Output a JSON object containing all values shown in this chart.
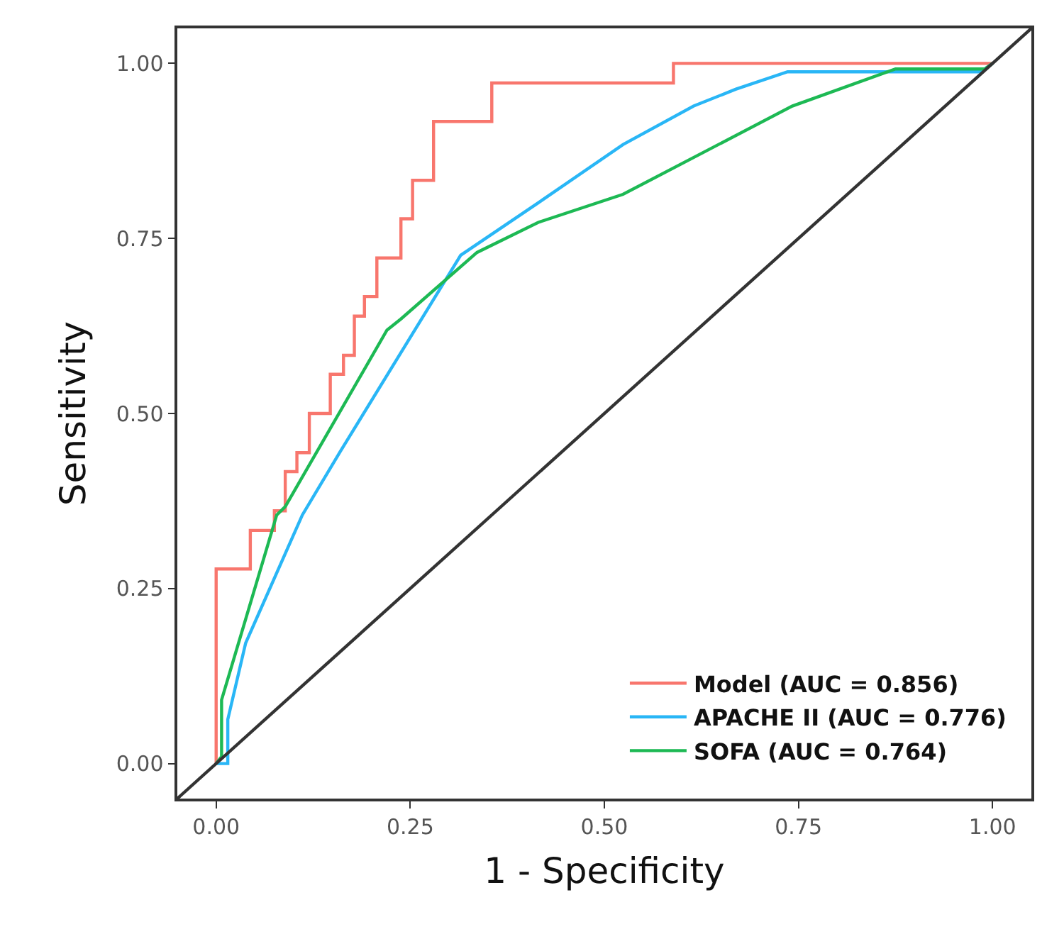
{
  "chart_data": {
    "type": "line",
    "xlabel": "1 - Specificity",
    "ylabel": "Sensitivity",
    "xlim": [
      -0.05,
      1.05
    ],
    "ylim": [
      -0.05,
      1.05
    ],
    "xticks": [
      {
        "value": 0,
        "label": "0.00"
      },
      {
        "value": 0.25,
        "label": "0.25"
      },
      {
        "value": 0.5,
        "label": "0.50"
      },
      {
        "value": 0.75,
        "label": "0.75"
      },
      {
        "value": 1,
        "label": "1.00"
      }
    ],
    "yticks": [
      {
        "value": 0,
        "label": "0.00"
      },
      {
        "value": 0.25,
        "label": "0.25"
      },
      {
        "value": 0.5,
        "label": "0.50"
      },
      {
        "value": 0.75,
        "label": "0.75"
      },
      {
        "value": 1,
        "label": "1.00"
      }
    ],
    "grid": false,
    "legend": "bottom right",
    "marker": "none",
    "line_style": "solid",
    "series": [
      {
        "type": "step",
        "name": "Model (AUC = 0.856)",
        "color": "#f8766d",
        "x": [
          0,
          0,
          0.044,
          0.075,
          0.089,
          0.104,
          0.12,
          0.147,
          0.164,
          0.178,
          0.191,
          0.207,
          0.238,
          0.253,
          0.28,
          0.355,
          0.589,
          1
        ],
        "values": [
          0,
          0.278,
          0.333,
          0.361,
          0.417,
          0.444,
          0.5,
          0.556,
          0.583,
          0.639,
          0.667,
          0.722,
          0.778,
          0.833,
          0.917,
          0.972,
          1,
          1
        ]
      },
      {
        "type": "line",
        "name": "APACHE II (AUC = 0.776)",
        "color": "#29b6f6",
        "x": [
          0,
          0.015,
          0.015,
          0.038,
          0.111,
          0.16,
          0.315,
          0.415,
          0.524,
          0.615,
          0.669,
          0.736,
          0.985,
          1
        ],
        "values": [
          0,
          0,
          0.063,
          0.172,
          0.355,
          0.446,
          0.726,
          0.801,
          0.884,
          0.939,
          0.963,
          0.988,
          0.988,
          1
        ]
      },
      {
        "type": "line",
        "name": "SOFA (AUC = 0.764)",
        "color": "#1db954",
        "x": [
          0,
          0.007,
          0.007,
          0.078,
          0.089,
          0.22,
          0.238,
          0.336,
          0.415,
          0.524,
          0.742,
          0.875,
          0.99,
          1
        ],
        "values": [
          0,
          0.01,
          0.091,
          0.355,
          0.367,
          0.619,
          0.635,
          0.73,
          0.773,
          0.813,
          0.939,
          0.992,
          0.992,
          1
        ]
      },
      {
        "type": "line",
        "color": "#333333",
        "x": [
          -0.05,
          1.05
        ],
        "values": [
          -0.05,
          1.05
        ]
      }
    ]
  }
}
